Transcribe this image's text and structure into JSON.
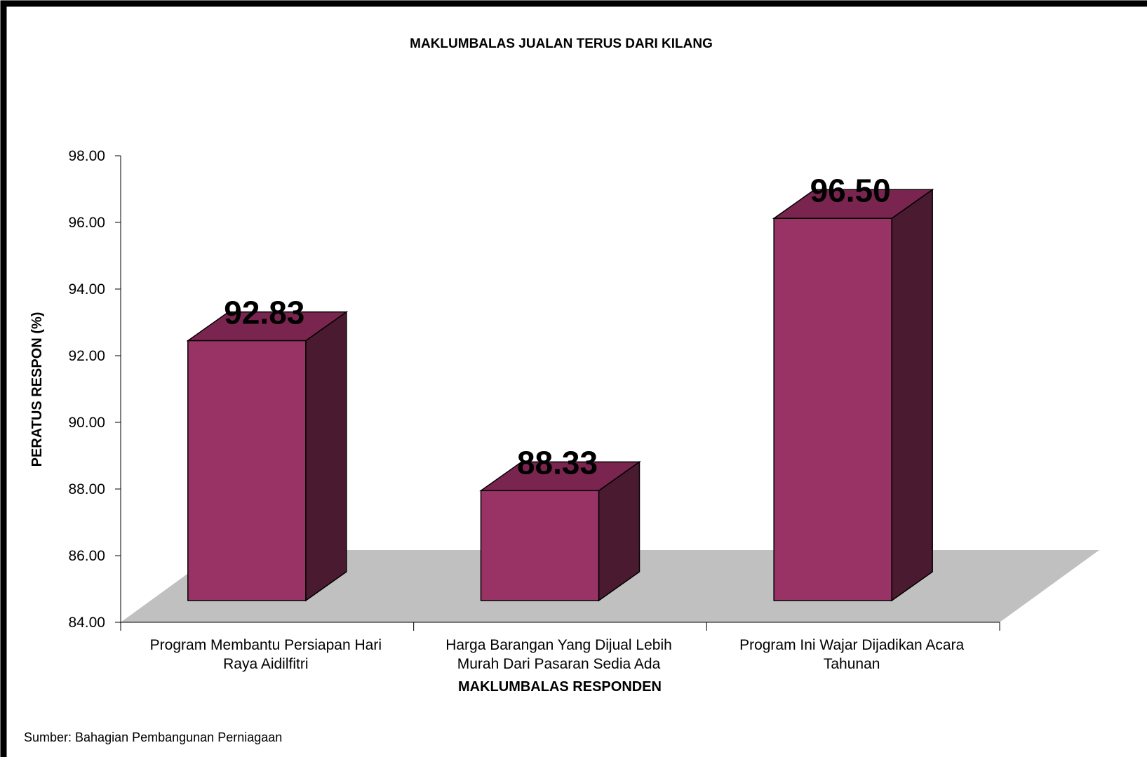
{
  "chart_data": {
    "type": "bar",
    "title": "MAKLUMBALAS JUALAN TERUS DARI KILANG",
    "xlabel": "MAKLUMBALAS RESPONDEN",
    "ylabel": "PERATUS RESPON (%)",
    "categories": [
      [
        "Program Membantu Persiapan Hari",
        "Raya Aidilfitri"
      ],
      [
        "Harga Barangan Yang Dijual Lebih",
        "Murah Dari Pasaran Sedia Ada"
      ],
      [
        "Program Ini Wajar Dijadikan Acara",
        "Tahunan"
      ]
    ],
    "values": [
      92.83,
      88.33,
      96.5
    ],
    "value_labels": [
      "92.83",
      "88.33",
      "96.50"
    ],
    "ylim": [
      84,
      98
    ],
    "yticks": [
      "84.00",
      "86.00",
      "88.00",
      "90.00",
      "92.00",
      "94.00",
      "96.00",
      "98.00"
    ],
    "grid": false,
    "legend": "none",
    "style": "3d-column",
    "colors": {
      "bar_front": "#993366",
      "bar_top": "#7A2550",
      "bar_side": "#4A1A30",
      "floor": "#C0C0C0"
    }
  },
  "source_note": "Sumber: Bahagian Pembangunan Perniagaan"
}
